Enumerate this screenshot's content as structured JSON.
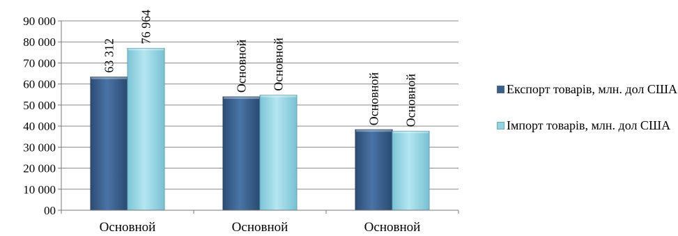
{
  "chart_data": {
    "type": "bar",
    "categories": [
      "Основной",
      "Основной",
      "Основной"
    ],
    "series": [
      {
        "name": "Експорт товарів, млн. дол США",
        "values": [
          63312,
          53900,
          38300
        ],
        "labels": [
          "63 312",
          "Основной",
          "Основной"
        ],
        "color": "#3a5f8c"
      },
      {
        "name": "Імпорт товарів, млн. дол США",
        "values": [
          76964,
          54700,
          37600
        ],
        "labels": [
          "76 964",
          "Основной",
          "Основной"
        ],
        "color": "#93d4e2"
      }
    ],
    "yticks": [
      "00",
      "10 000",
      "20 000",
      "30 000",
      "40 000",
      "50 000",
      "60 000",
      "70 000",
      "80 000",
      "90 000"
    ],
    "ylim": [
      0,
      90000
    ],
    "grid": true,
    "legend": "right"
  }
}
